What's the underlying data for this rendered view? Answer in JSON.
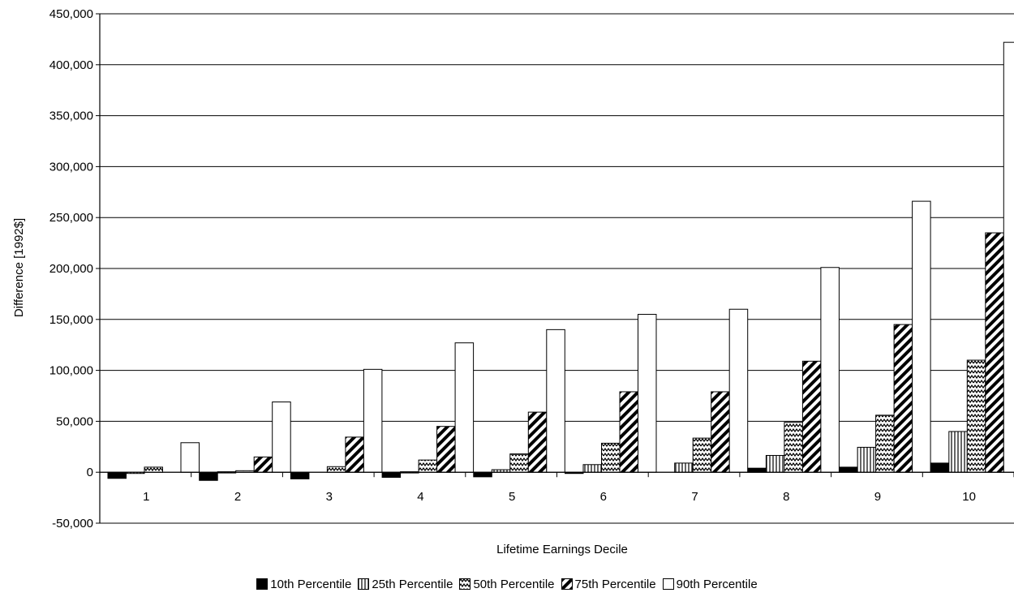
{
  "chart_data": {
    "type": "bar",
    "title": "",
    "xlabel": "Lifetime Earnings Decile",
    "ylabel": "Difference [1992$]",
    "ylim": [
      -50000,
      450000
    ],
    "yticks": [
      -50000,
      0,
      50000,
      100000,
      150000,
      200000,
      250000,
      300000,
      350000,
      400000,
      450000
    ],
    "ytick_labels": [
      "-50,000",
      "0",
      "50,000",
      "100,000",
      "150,000",
      "200,000",
      "250,000",
      "300,000",
      "350,000",
      "400,000",
      "450,000"
    ],
    "grid": "horizontal",
    "legend_position": "bottom",
    "categories": [
      "1",
      "2",
      "3",
      "4",
      "5",
      "6",
      "7",
      "8",
      "9",
      "10"
    ],
    "series": [
      {
        "name": "10th Percentile",
        "pattern": "solid",
        "values": [
          -6000,
          -8000,
          -6500,
          -5000,
          -4500,
          -1000,
          0,
          4000,
          5000,
          9000
        ]
      },
      {
        "name": "25th Percentile",
        "pattern": "vertical",
        "values": [
          -1000,
          500,
          0,
          500,
          2500,
          7500,
          9000,
          16500,
          24500,
          40000
        ]
      },
      {
        "name": "50th Percentile",
        "pattern": "zigzag",
        "values": [
          5000,
          1500,
          5500,
          12000,
          18000,
          28500,
          33500,
          49000,
          56000,
          110000
        ]
      },
      {
        "name": "75th Percentile",
        "pattern": "diagonal",
        "values": [
          0,
          15000,
          34500,
          45000,
          59000,
          79000,
          79000,
          109000,
          145000,
          235000
        ]
      },
      {
        "name": "90th Percentile",
        "pattern": "empty",
        "values": [
          29000,
          69000,
          101000,
          127000,
          140000,
          155000,
          160000,
          201000,
          266000,
          422000
        ]
      }
    ]
  }
}
